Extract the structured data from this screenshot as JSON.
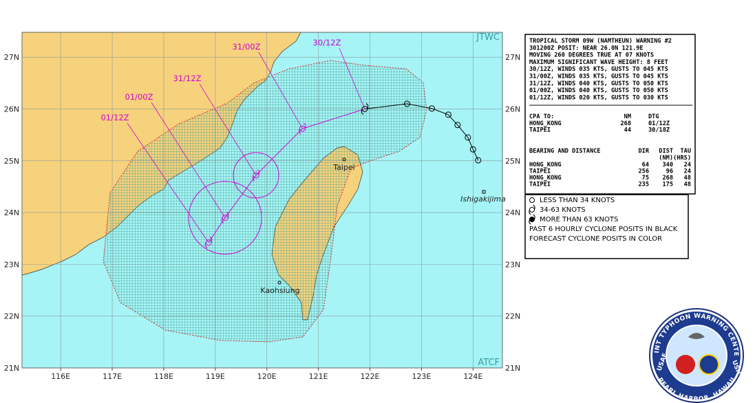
{
  "map": {
    "source_labels": [
      "JTWC",
      "ATCF"
    ],
    "xlim": [
      115.25,
      124.57
    ],
    "ylim": [
      21,
      27.48
    ],
    "xticks": [
      {
        "value": 116,
        "label": "116E"
      },
      {
        "value": 117,
        "label": "117E"
      },
      {
        "value": 118,
        "label": "118E"
      },
      {
        "value": 119,
        "label": "119E"
      },
      {
        "value": 120,
        "label": "120E"
      },
      {
        "value": 121,
        "label": "121E"
      },
      {
        "value": 122,
        "label": "122E"
      },
      {
        "value": 123,
        "label": "123E"
      },
      {
        "value": 124,
        "label": "124E"
      }
    ],
    "yticks": [
      {
        "value": 21,
        "label": "21N"
      },
      {
        "value": 22,
        "label": "22N"
      },
      {
        "value": 23,
        "label": "23N"
      },
      {
        "value": 24,
        "label": "24N"
      },
      {
        "value": 25,
        "label": "25N"
      },
      {
        "value": 26,
        "label": "26N"
      },
      {
        "value": 27,
        "label": "27N"
      }
    ]
  },
  "cities": [
    "Taipei",
    "Kaohsiung",
    "Ishigakijima"
  ],
  "past_track": [
    {
      "lon": 124.1,
      "lat": 25.01
    },
    {
      "lon": 124.0,
      "lat": 25.22
    },
    {
      "lon": 123.9,
      "lat": 25.45
    },
    {
      "lon": 123.7,
      "lat": 25.69
    },
    {
      "lon": 123.52,
      "lat": 25.89
    },
    {
      "lon": 123.2,
      "lat": 26.01
    },
    {
      "lon": 122.72,
      "lat": 26.1
    }
  ],
  "forecast_track": [
    {
      "label": "30/12Z",
      "lon": 121.9,
      "lat": 26.0
    },
    {
      "label": "31/00Z",
      "lon": 120.69,
      "lat": 25.62
    },
    {
      "label": "31/12Z",
      "lon": 119.79,
      "lat": 24.72
    },
    {
      "label": "01/00Z",
      "lon": 119.19,
      "lat": 23.9
    },
    {
      "label": "01/12Z",
      "lon": 118.87,
      "lat": 23.42
    }
  ],
  "warning": {
    "lines": [
      "TROPICAL STORM 09W (NAMTHEUN) WARNING #2",
      "301200Z POSIT: NEAR 26.0N 121.9E",
      "MOVING 260 DEGREES TRUE AT 07 KNOTS",
      "MAXIMUM SIGNIFICANT WAVE HEIGHT: 8 FEET",
      "30/12Z, WINDS 035 KTS, GUSTS TO 045 KTS",
      "31/00Z, WINDS 035 KTS, GUSTS TO 045 KTS",
      "31/12Z, WINDS 040 KTS, GUSTS TO 050 KTS",
      "01/00Z, WINDS 040 KTS, GUSTS TO 050 KTS",
      "01/12Z, WINDS 020 KTS, GUSTS TO 030 KTS"
    ],
    "cpa": {
      "header": [
        "CPA TO:",
        "NM",
        "DTG"
      ],
      "rows": [
        [
          "HONG_KONG",
          "268",
          "01/12Z"
        ],
        [
          "TAIPEI",
          "44",
          "30/18Z"
        ]
      ]
    },
    "bearing": {
      "header": [
        "BEARING AND DISTANCE",
        "DIR",
        "DIST",
        "TAU"
      ],
      "units": [
        "(NM)",
        "(HRS)"
      ],
      "rows": [
        [
          "HONG_KONG",
          "64",
          "340",
          "24"
        ],
        [
          "TAIPEI",
          "256",
          "96",
          "24"
        ],
        [
          "HONG_KONG",
          "75",
          "268",
          "48"
        ],
        [
          "TAIPEI",
          "235",
          "175",
          "48"
        ]
      ]
    }
  },
  "legend": [
    "LESS THAN 34 KNOTS",
    "34-63 KNOTS",
    "MORE THAN 63 KNOTS",
    "PAST 6 HOURLY CYCLONE POSITS IN BLACK",
    "FORECAST CYCLONE POSITS IN COLOR"
  ],
  "seal": [
    "USAF",
    "JOINT TYPHOON WARNING CENTER",
    "USN",
    "PEARL HARBOR, HAWAII"
  ]
}
